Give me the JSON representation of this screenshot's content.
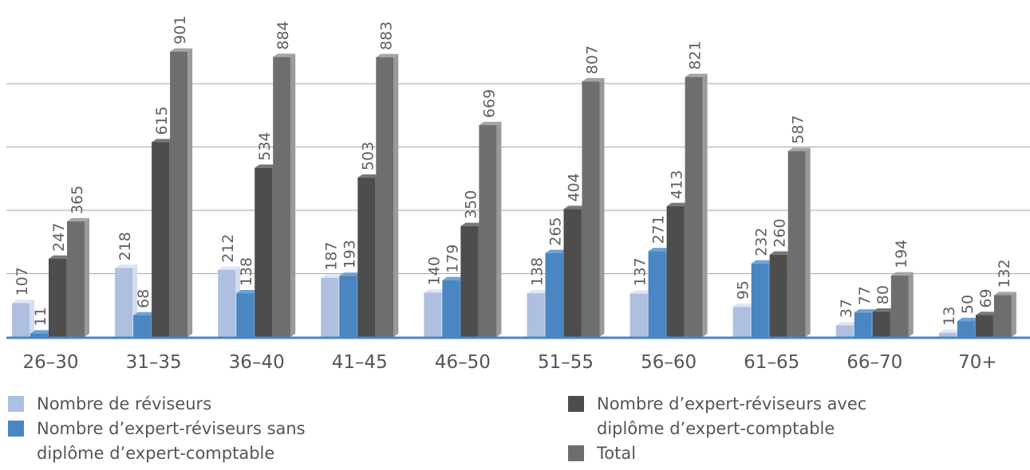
{
  "chart_data": {
    "type": "bar",
    "categories": [
      "26–30",
      "31–35",
      "36–40",
      "41–45",
      "46–50",
      "51–55",
      "56–60",
      "61–65",
      "66–70",
      "70+"
    ],
    "series": [
      {
        "name": "Nombre de réviseurs",
        "color": "#aebfdf",
        "side": "#d3ddee",
        "top": "#dfe6f3",
        "values": [
          107,
          218,
          212,
          187,
          140,
          138,
          137,
          95,
          37,
          13
        ]
      },
      {
        "name": "Nombre d’expert-réviseurs sans diplôme d’expert-comptable",
        "color": "#4a86c1",
        "side": "#5f97cd",
        "top": "#6ea2d4",
        "values": [
          11,
          68,
          138,
          193,
          179,
          265,
          271,
          232,
          77,
          50
        ]
      },
      {
        "name": "Nombre d’expert-réviseurs avec diplôme d’expert-comptable",
        "color": "#4d4d4d",
        "side": "#6a6a6a",
        "top": "#777777",
        "values": [
          247,
          615,
          534,
          503,
          350,
          404,
          413,
          260,
          80,
          69
        ]
      },
      {
        "name": "Total",
        "color": "#6e6e6e",
        "side": "#9a9a9a",
        "top": "#a5a5a5",
        "values": [
          365,
          901,
          884,
          883,
          669,
          807,
          821,
          587,
          194,
          132
        ]
      }
    ],
    "ylim": [
      0,
      1000
    ],
    "grid": true,
    "legend_position": "bottom"
  },
  "legend": {
    "col1": [
      {
        "label": "Nombre de réviseurs",
        "color": "#aebfdf"
      },
      {
        "label": "Nombre d’expert-réviseurs sans diplôme d’expert-comptable",
        "color": "#4a86c1"
      }
    ],
    "col2": [
      {
        "label": "Nombre d’expert-réviseurs avec diplôme d’expert-comptable",
        "color": "#4d4d4d"
      },
      {
        "label": "Total",
        "color": "#6e6e6e"
      }
    ]
  }
}
